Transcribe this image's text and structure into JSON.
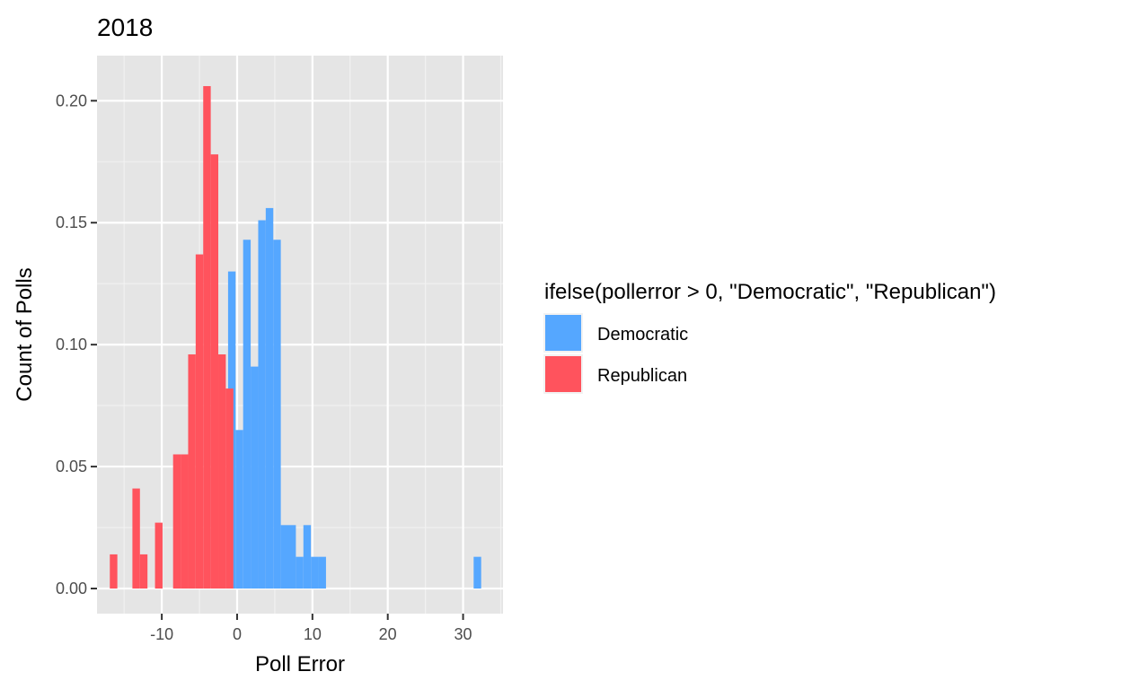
{
  "chart_data": {
    "type": "bar",
    "title": "2018",
    "xlabel": "Poll Error",
    "ylabel": "Count of Polls",
    "xlim": [
      -18.6,
      35.3
    ],
    "ylim": [
      -0.0103,
      0.2185
    ],
    "xticks": [
      -10,
      0,
      10,
      20,
      30
    ],
    "xtick_labels": [
      "-10",
      "0",
      "10",
      "20",
      "30"
    ],
    "yticks": [
      0,
      0.05,
      0.1,
      0.15,
      0.2
    ],
    "ytick_labels": [
      "0.00",
      "0.05",
      "0.10",
      "0.15",
      "0.20"
    ],
    "bin_width": 1.0,
    "grid": true,
    "legend": {
      "title": "ifelse(pollerror > 0, \"Democratic\", \"Republican\")",
      "placement": "right",
      "entries": [
        "Democratic",
        "Republican"
      ]
    },
    "colors": {
      "Democratic": "#55A7FF",
      "Republican": "#FF535D"
    },
    "series": [
      {
        "name": "Democratic",
        "x": [
          -0.7,
          0.3,
          1.3,
          2.3,
          3.3,
          4.3,
          5.3,
          6.3,
          7.3,
          8.3,
          9.3,
          10.3,
          11.3,
          31.9
        ],
        "values": [
          0.13,
          0.065,
          0.143,
          0.091,
          0.151,
          0.156,
          0.143,
          0.026,
          0.026,
          0.013,
          0.026,
          0.013,
          0.013,
          0.013
        ]
      },
      {
        "name": "Republican",
        "x": [
          -16.4,
          -13.4,
          -12.4,
          -10.4,
          -8.0,
          -7.0,
          -6.0,
          -5.0,
          -4.0,
          -3.0,
          -2.0,
          -1.0
        ],
        "values": [
          0.014,
          0.041,
          0.014,
          0.027,
          0.055,
          0.055,
          0.096,
          0.137,
          0.206,
          0.178,
          0.096,
          0.082
        ]
      }
    ]
  }
}
